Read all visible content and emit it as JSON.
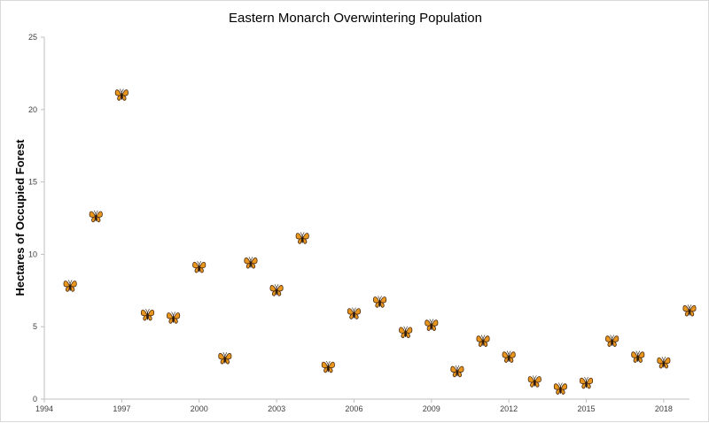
{
  "chart_data": {
    "type": "scatter",
    "title": "Eastern Monarch Overwintering Population",
    "xlabel": "",
    "ylabel": "Hectares of Occupied Forest",
    "xlim": [
      1994,
      2019
    ],
    "ylim": [
      0,
      25
    ],
    "x_ticks": [
      1994,
      1997,
      2000,
      2003,
      2006,
      2009,
      2012,
      2015,
      2018
    ],
    "y_ticks": [
      0,
      5,
      10,
      15,
      20,
      25
    ],
    "grid": false,
    "legend": "none",
    "marker": "butterfly-icon",
    "series": [
      {
        "x": [
          1995,
          1996,
          1997,
          1998,
          1999,
          2000,
          2001,
          2002,
          2003,
          2004,
          2005,
          2006,
          2007,
          2008,
          2009,
          2010,
          2011,
          2012,
          2013,
          2014,
          2015,
          2016,
          2017,
          2018,
          2019
        ],
        "values": [
          7.8,
          12.6,
          21.0,
          5.8,
          5.6,
          9.1,
          2.8,
          9.4,
          7.5,
          11.1,
          2.2,
          5.9,
          6.7,
          4.6,
          5.1,
          1.9,
          4.0,
          2.9,
          1.2,
          0.7,
          1.1,
          4.0,
          2.9,
          2.5,
          6.1
        ]
      }
    ]
  },
  "colors": {
    "axis": "#bfbfbf",
    "tick_text": "#404040",
    "butterfly_wing": "#e8961e",
    "butterfly_vein": "#4a2a10",
    "butterfly_body": "#2b1a0e"
  }
}
